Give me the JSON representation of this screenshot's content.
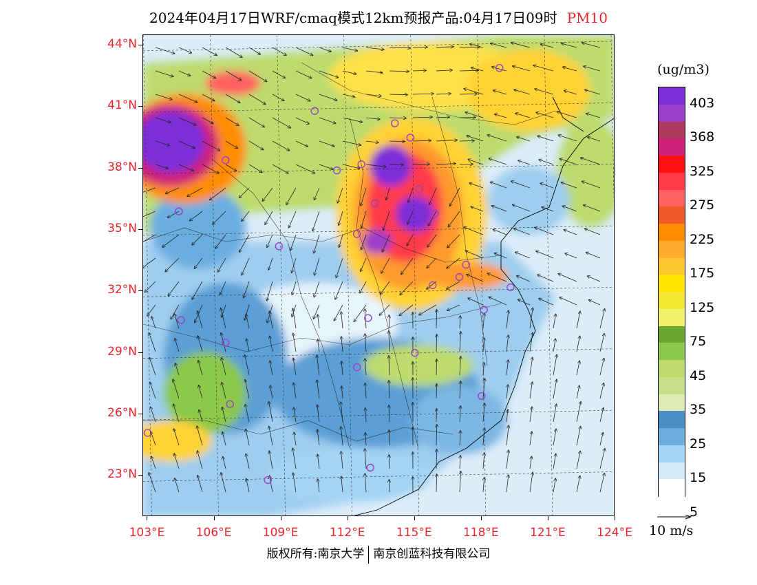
{
  "title": {
    "text": "2024年04月17日WRF/cmaq模式12km预报产品:04月17日09时",
    "pollutant": "PM10"
  },
  "axes": {
    "lat_labels": [
      "44°N",
      "41°N",
      "38°N",
      "35°N",
      "32°N",
      "29°N",
      "26°N",
      "23°N"
    ],
    "lon_labels": [
      "103°E",
      "106°E",
      "109°E",
      "112°E",
      "115°E",
      "118°E",
      "121°E",
      "124°E"
    ],
    "lat_values": [
      44,
      41,
      38,
      35,
      32,
      29,
      26,
      23
    ],
    "lon_values": [
      103,
      106,
      109,
      112,
      115,
      118,
      121,
      124
    ],
    "lat_range": [
      21,
      44.5
    ],
    "lon_range": [
      102.8,
      124
    ],
    "label_color": "#e8252c"
  },
  "colorbar": {
    "unit": "(ug/m3)",
    "labels": [
      "403",
      "368",
      "325",
      "275",
      "225",
      "175",
      "125",
      "75",
      "45",
      "35",
      "25",
      "15",
      "5"
    ],
    "colors": [
      "#7b2fd8",
      "#9b3fc8",
      "#b03a5e",
      "#d0217a",
      "#ff1010",
      "#ff3a4a",
      "#ff6060",
      "#f05a28",
      "#ff8c00",
      "#ffab2e",
      "#ffc830",
      "#ffe400",
      "#f5e830",
      "#f0f36a",
      "#6aa82e",
      "#8cc84a",
      "#bedc6e",
      "#c8e08a",
      "#dcebb8",
      "#4a8ec8",
      "#6aaee0",
      "#a4d4f4",
      "#d4ecfa",
      "#ffffff"
    ]
  },
  "wind_reference": {
    "label": "10 m/s"
  },
  "stations": [
    {
      "lon": 118.8,
      "lat": 42.9
    },
    {
      "lon": 110.5,
      "lat": 40.8
    },
    {
      "lon": 114.1,
      "lat": 40.2
    },
    {
      "lon": 114.8,
      "lat": 39.5
    },
    {
      "lon": 106.5,
      "lat": 38.4
    },
    {
      "lon": 111.5,
      "lat": 37.9
    },
    {
      "lon": 112.6,
      "lat": 38.2
    },
    {
      "lon": 115.2,
      "lat": 37.0
    },
    {
      "lon": 104.4,
      "lat": 35.9
    },
    {
      "lon": 112.4,
      "lat": 34.8
    },
    {
      "lon": 113.2,
      "lat": 36.3
    },
    {
      "lon": 115.9,
      "lat": 35.8
    },
    {
      "lon": 108.9,
      "lat": 34.2
    },
    {
      "lon": 117.3,
      "lat": 33.3
    },
    {
      "lon": 117.0,
      "lat": 32.7
    },
    {
      "lon": 115.8,
      "lat": 32.3
    },
    {
      "lon": 119.3,
      "lat": 32.2
    },
    {
      "lon": 118.1,
      "lat": 31.1
    },
    {
      "lon": 112.9,
      "lat": 30.7
    },
    {
      "lon": 104.5,
      "lat": 30.6
    },
    {
      "lon": 106.5,
      "lat": 29.5
    },
    {
      "lon": 115.0,
      "lat": 29.0
    },
    {
      "lon": 112.4,
      "lat": 28.3
    },
    {
      "lon": 118.0,
      "lat": 26.9
    },
    {
      "lon": 106.7,
      "lat": 26.5
    },
    {
      "lon": 103.0,
      "lat": 25.1
    },
    {
      "lon": 113.0,
      "lat": 23.4
    },
    {
      "lon": 108.4,
      "lat": 22.8
    }
  ],
  "footer": {
    "left": "版权所有:南京大学",
    "right": "南京创蓝科技有限公司"
  }
}
